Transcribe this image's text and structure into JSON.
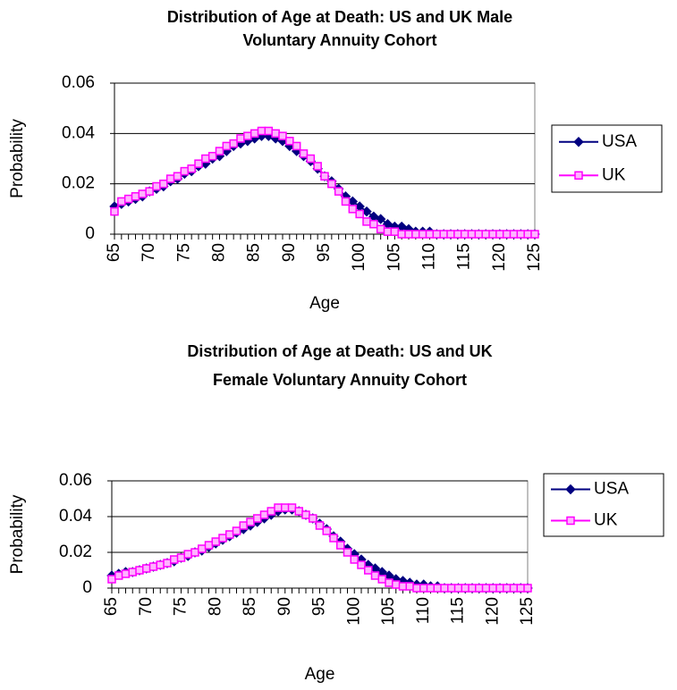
{
  "chart_data": [
    {
      "type": "line",
      "title": [
        "Distribution of Age at Death: US and UK Male",
        "Voluntary Annuity Cohort"
      ],
      "xlabel": "Age",
      "ylabel": "Probability",
      "x": [
        65,
        66,
        67,
        68,
        69,
        70,
        71,
        72,
        73,
        74,
        75,
        76,
        77,
        78,
        79,
        80,
        81,
        82,
        83,
        84,
        85,
        86,
        87,
        88,
        89,
        90,
        91,
        92,
        93,
        94,
        95,
        96,
        97,
        98,
        99,
        100,
        101,
        102,
        103,
        104,
        105,
        106,
        107,
        108,
        109,
        110,
        111,
        112,
        113,
        114,
        115,
        116,
        117,
        118,
        119,
        120,
        121,
        122,
        123,
        124,
        125
      ],
      "xlim": [
        65,
        125
      ],
      "xticks": [
        65,
        70,
        75,
        80,
        85,
        90,
        95,
        100,
        105,
        110,
        115,
        120,
        125
      ],
      "ylim": [
        0,
        0.06
      ],
      "yticks": [
        0,
        0.02,
        0.04,
        0.06
      ],
      "grid": true,
      "legend": "right",
      "series": [
        {
          "name": "USA",
          "color": "#000080",
          "marker": "diamond",
          "values": [
            0.011,
            0.012,
            0.013,
            0.014,
            0.015,
            0.017,
            0.018,
            0.019,
            0.021,
            0.022,
            0.024,
            0.025,
            0.027,
            0.028,
            0.03,
            0.031,
            0.033,
            0.035,
            0.036,
            0.037,
            0.038,
            0.039,
            0.039,
            0.038,
            0.037,
            0.035,
            0.033,
            0.031,
            0.029,
            0.026,
            0.023,
            0.021,
            0.018,
            0.015,
            0.013,
            0.011,
            0.009,
            0.007,
            0.006,
            0.004,
            0.003,
            0.003,
            0.002,
            0.001,
            0.001,
            0.001,
            0,
            0,
            0,
            0,
            0,
            0,
            0,
            0,
            0,
            0,
            0,
            0,
            0,
            0,
            0
          ]
        },
        {
          "name": "UK",
          "color": "#ff00ff",
          "marker": "square",
          "values": [
            0.009,
            0.013,
            0.014,
            0.015,
            0.016,
            0.017,
            0.019,
            0.02,
            0.022,
            0.023,
            0.025,
            0.026,
            0.028,
            0.03,
            0.031,
            0.033,
            0.035,
            0.036,
            0.038,
            0.039,
            0.04,
            0.041,
            0.041,
            0.04,
            0.039,
            0.037,
            0.035,
            0.032,
            0.03,
            0.027,
            0.023,
            0.02,
            0.017,
            0.013,
            0.01,
            0.008,
            0.005,
            0.004,
            0.002,
            0.001,
            0.001,
            0,
            0,
            0,
            0,
            0,
            0,
            0,
            0,
            0,
            0,
            0,
            0,
            0,
            0,
            0,
            0,
            0,
            0,
            0,
            0
          ]
        }
      ]
    },
    {
      "type": "line",
      "title": [
        "Distribution of Age at Death: US and UK",
        "Female Voluntary Annuity Cohort"
      ],
      "xlabel": "Age",
      "ylabel": "Probability",
      "x": [
        65,
        66,
        67,
        68,
        69,
        70,
        71,
        72,
        73,
        74,
        75,
        76,
        77,
        78,
        79,
        80,
        81,
        82,
        83,
        84,
        85,
        86,
        87,
        88,
        89,
        90,
        91,
        92,
        93,
        94,
        95,
        96,
        97,
        98,
        99,
        100,
        101,
        102,
        103,
        104,
        105,
        106,
        107,
        108,
        109,
        110,
        111,
        112,
        113,
        114,
        115,
        116,
        117,
        118,
        119,
        120,
        121,
        122,
        123,
        124,
        125
      ],
      "xlim": [
        65,
        125
      ],
      "xticks": [
        65,
        70,
        75,
        80,
        85,
        90,
        95,
        100,
        105,
        110,
        115,
        120,
        125
      ],
      "ylim": [
        0,
        0.06
      ],
      "yticks": [
        0,
        0.02,
        0.04,
        0.06
      ],
      "grid": true,
      "legend": "right",
      "series": [
        {
          "name": "USA",
          "color": "#000080",
          "marker": "diamond",
          "values": [
            0.007,
            0.008,
            0.009,
            0.009,
            0.01,
            0.011,
            0.012,
            0.013,
            0.014,
            0.015,
            0.017,
            0.018,
            0.02,
            0.021,
            0.023,
            0.025,
            0.027,
            0.029,
            0.031,
            0.033,
            0.035,
            0.037,
            0.039,
            0.041,
            0.043,
            0.044,
            0.044,
            0.043,
            0.041,
            0.039,
            0.036,
            0.033,
            0.029,
            0.026,
            0.022,
            0.019,
            0.016,
            0.013,
            0.011,
            0.009,
            0.007,
            0.005,
            0.004,
            0.003,
            0.002,
            0.002,
            0.001,
            0.001,
            0,
            0,
            0,
            0,
            0,
            0,
            0,
            0,
            0,
            0,
            0,
            0,
            0
          ]
        },
        {
          "name": "UK",
          "color": "#ff00ff",
          "marker": "square",
          "values": [
            0.005,
            0.007,
            0.008,
            0.009,
            0.01,
            0.011,
            0.012,
            0.013,
            0.014,
            0.016,
            0.017,
            0.019,
            0.02,
            0.022,
            0.024,
            0.026,
            0.028,
            0.03,
            0.032,
            0.035,
            0.037,
            0.039,
            0.041,
            0.043,
            0.045,
            0.045,
            0.045,
            0.043,
            0.041,
            0.039,
            0.035,
            0.032,
            0.028,
            0.024,
            0.02,
            0.016,
            0.013,
            0.01,
            0.007,
            0.005,
            0.003,
            0.002,
            0.001,
            0.001,
            0,
            0,
            0,
            0,
            0,
            0,
            0,
            0,
            0,
            0,
            0,
            0,
            0,
            0,
            0,
            0,
            0
          ]
        }
      ]
    }
  ]
}
